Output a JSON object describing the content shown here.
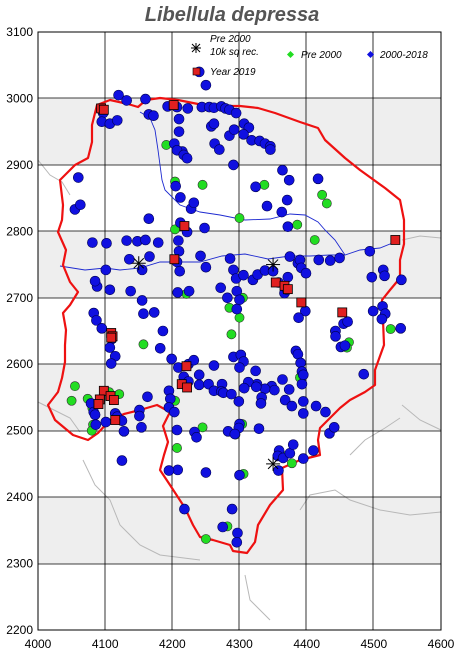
{
  "title": "Libellula depressa",
  "legend": {
    "pre2000_10k": [
      "Pre 2000",
      "10k sq rec."
    ],
    "pre2000": "Pre 2000",
    "recent": "2000-2018",
    "year2019": "Year 2019"
  },
  "chart_data": {
    "type": "scatter",
    "xlim": [
      4000,
      4600
    ],
    "ylim": [
      2200,
      3100
    ],
    "x_ticks": [
      4000,
      4100,
      4200,
      4300,
      4400,
      4500,
      4600
    ],
    "y_ticks": [
      2200,
      2300,
      2400,
      2500,
      2600,
      2700,
      2800,
      2900,
      3000,
      3100
    ],
    "x_tick_labels": [
      "4000",
      "4100",
      "4200",
      "4300",
      "4400",
      "4500",
      "4600"
    ],
    "y_tick_labels": [
      "2200",
      "2300",
      "2400",
      "2500",
      "2600",
      "2700",
      "2800",
      "2900",
      "3000",
      "3100"
    ],
    "grid": true,
    "colors": {
      "recent": "#1010e0",
      "pre2000": "#22dd22",
      "year2019": "#e02020",
      "boundary": "#ee1111",
      "river": "#1e2ad0",
      "band": "#eeeeee"
    },
    "series": [
      {
        "name": "2000-2018",
        "points": [
          [
            4120,
            3005
          ],
          [
            4132,
            2997
          ],
          [
            4160,
            2999
          ],
          [
            4165,
            2976
          ],
          [
            4172,
            2974
          ],
          [
            4193,
            2988
          ],
          [
            4207,
            2987
          ],
          [
            4210,
            2969
          ],
          [
            4223,
            2985
          ],
          [
            4244,
            2987
          ],
          [
            4255,
            2987
          ],
          [
            4262,
            2986
          ],
          [
            4273,
            2988
          ],
          [
            4279,
            2985
          ],
          [
            4285,
            2983
          ],
          [
            4295,
            2978
          ],
          [
            4097,
            2978
          ],
          [
            4095,
            2965
          ],
          [
            4107,
            2962
          ],
          [
            4118,
            2967
          ],
          [
            4210,
            2950
          ],
          [
            4203,
            2932
          ],
          [
            4215,
            2920
          ],
          [
            4258,
            2958
          ],
          [
            4262,
            2962
          ],
          [
            4285,
            2944
          ],
          [
            4292,
            2953
          ],
          [
            4307,
            2962
          ],
          [
            4314,
            2956
          ],
          [
            4306,
            2946
          ],
          [
            4318,
            2937
          ],
          [
            4330,
            2936
          ],
          [
            4338,
            2932
          ],
          [
            4346,
            2928
          ],
          [
            4346,
            2923
          ],
          [
            4263,
            2932
          ],
          [
            4270,
            2923
          ],
          [
            4207,
            2922
          ],
          [
            4217,
            2915
          ],
          [
            4222,
            2910
          ],
          [
            4291,
            2900
          ],
          [
            4364,
            2892
          ],
          [
            4324,
            2867
          ],
          [
            4374,
            2877
          ],
          [
            4417,
            2879
          ],
          [
            4060,
            2881
          ],
          [
            4055,
            2833
          ],
          [
            4063,
            2840
          ],
          [
            4205,
            2868
          ],
          [
            4212,
            2851
          ],
          [
            4228,
            2834
          ],
          [
            4232,
            2843
          ],
          [
            4341,
            2838
          ],
          [
            4371,
            2847
          ],
          [
            4363,
            2829
          ],
          [
            4165,
            2819
          ],
          [
            4212,
            2813
          ],
          [
            4222,
            2799
          ],
          [
            4248,
            2805
          ],
          [
            4372,
            2807
          ],
          [
            4081,
            2783
          ],
          [
            4102,
            2782
          ],
          [
            4132,
            2786
          ],
          [
            4148,
            2785
          ],
          [
            4160,
            2787
          ],
          [
            4179,
            2783
          ],
          [
            4209,
            2786
          ],
          [
            4210,
            2770
          ],
          [
            4136,
            2758
          ],
          [
            4155,
            2742
          ],
          [
            4166,
            2762
          ],
          [
            4207,
            2754
          ],
          [
            4211,
            2740
          ],
          [
            4242,
            2763
          ],
          [
            4250,
            2746
          ],
          [
            4286,
            2759
          ],
          [
            4291,
            2742
          ],
          [
            4295,
            2729
          ],
          [
            4306,
            2734
          ],
          [
            4320,
            2727
          ],
          [
            4327,
            2735
          ],
          [
            4338,
            2741
          ],
          [
            4375,
            2762
          ],
          [
            4387,
            2752
          ],
          [
            4390,
            2757
          ],
          [
            4392,
            2745
          ],
          [
            4350,
            2740
          ],
          [
            4358,
            2723
          ],
          [
            4372,
            2731
          ],
          [
            4399,
            2737
          ],
          [
            4418,
            2757
          ],
          [
            4435,
            2756
          ],
          [
            4449,
            2760
          ],
          [
            4494,
            2770
          ],
          [
            4514,
            2742
          ],
          [
            4516,
            2733
          ],
          [
            4541,
            2727
          ],
          [
            4497,
            2731
          ],
          [
            4101,
            2742
          ],
          [
            4088,
            2717
          ],
          [
            4085,
            2725
          ],
          [
            4107,
            2712
          ],
          [
            4138,
            2710
          ],
          [
            4155,
            2696
          ],
          [
            4157,
            2676
          ],
          [
            4173,
            2678
          ],
          [
            4208,
            2708
          ],
          [
            4225,
            2710
          ],
          [
            4272,
            2715
          ],
          [
            4282,
            2700
          ],
          [
            4296,
            2710
          ],
          [
            4300,
            2697
          ],
          [
            4296,
            2683
          ],
          [
            4367,
            2707
          ],
          [
            4371,
            2712
          ],
          [
            4398,
            2680
          ],
          [
            4388,
            2670
          ],
          [
            4455,
            2661
          ],
          [
            4461,
            2664
          ],
          [
            4443,
            2650
          ],
          [
            4443,
            2642
          ],
          [
            4451,
            2626
          ],
          [
            4457,
            2628
          ],
          [
            4499,
            2680
          ],
          [
            4513,
            2687
          ],
          [
            4517,
            2676
          ],
          [
            4512,
            2668
          ],
          [
            4540,
            2654
          ],
          [
            4083,
            2677
          ],
          [
            4087,
            2666
          ],
          [
            4095,
            2654
          ],
          [
            4110,
            2638
          ],
          [
            4107,
            2625
          ],
          [
            4115,
            2612
          ],
          [
            4109,
            2601
          ],
          [
            4186,
            2650
          ],
          [
            4182,
            2624
          ],
          [
            4199,
            2608
          ],
          [
            4209,
            2595
          ],
          [
            4224,
            2600
          ],
          [
            4232,
            2606
          ],
          [
            4217,
            2581
          ],
          [
            4224,
            2574
          ],
          [
            4262,
            2598
          ],
          [
            4291,
            2611
          ],
          [
            4302,
            2614
          ],
          [
            4306,
            2604
          ],
          [
            4300,
            2595
          ],
          [
            4324,
            2590
          ],
          [
            4326,
            2570
          ],
          [
            4348,
            2567
          ],
          [
            4352,
            2561
          ],
          [
            4338,
            2563
          ],
          [
            4364,
            2577
          ],
          [
            4384,
            2620
          ],
          [
            4387,
            2615
          ],
          [
            4391,
            2602
          ],
          [
            4393,
            2589
          ],
          [
            4395,
            2584
          ],
          [
            4393,
            2570
          ],
          [
            4374,
            2562
          ],
          [
            4368,
            2546
          ],
          [
            4395,
            2544
          ],
          [
            4378,
            2537
          ],
          [
            4395,
            2526
          ],
          [
            4414,
            2537
          ],
          [
            4428,
            2528
          ],
          [
            4434,
            2496
          ],
          [
            4441,
            2505
          ],
          [
            4485,
            2585
          ],
          [
            4240,
            2584
          ],
          [
            4240,
            2569
          ],
          [
            4254,
            2570
          ],
          [
            4262,
            2560
          ],
          [
            4274,
            2570
          ],
          [
            4273,
            2559
          ],
          [
            4276,
            2557
          ],
          [
            4288,
            2555
          ],
          [
            4299,
            2544
          ],
          [
            4313,
            2573
          ],
          [
            4307,
            2564
          ],
          [
            4325,
            2566
          ],
          [
            4333,
            2550
          ],
          [
            4332,
            2541
          ],
          [
            4300,
            2510
          ],
          [
            4299,
            2504
          ],
          [
            4283,
            2499
          ],
          [
            4293,
            2495
          ],
          [
            4329,
            2503
          ],
          [
            4079,
            2541
          ],
          [
            4083,
            2528
          ],
          [
            4085,
            2524
          ],
          [
            4086,
            2509
          ],
          [
            4101,
            2513
          ],
          [
            4115,
            2526
          ],
          [
            4118,
            2521
          ],
          [
            4125,
            2515
          ],
          [
            4128,
            2499
          ],
          [
            4151,
            2531
          ],
          [
            4151,
            2522
          ],
          [
            4154,
            2505
          ],
          [
            4163,
            2551
          ],
          [
            4195,
            2560
          ],
          [
            4197,
            2548
          ],
          [
            4195,
            2535
          ],
          [
            4203,
            2528
          ],
          [
            4207,
            2501
          ],
          [
            4233,
            2498
          ],
          [
            4236,
            2490
          ],
          [
            4359,
            2470
          ],
          [
            4357,
            2462
          ],
          [
            4365,
            2459
          ],
          [
            4358,
            2440
          ],
          [
            4375,
            2466
          ],
          [
            4380,
            2479
          ],
          [
            4395,
            2458
          ],
          [
            4410,
            2470
          ],
          [
            4125,
            2455
          ],
          [
            4208,
            2441
          ],
          [
            4195,
            2440
          ],
          [
            4218,
            2382
          ],
          [
            4250,
            2437
          ],
          [
            4275,
            2355
          ],
          [
            4289,
            2382
          ],
          [
            4297,
            2346
          ],
          [
            4296,
            2332
          ],
          [
            4300,
            2433
          ],
          [
            4250,
            3020
          ],
          [
            4240,
            3040
          ]
        ]
      },
      {
        "name": "Pre 2000",
        "points": [
          [
            4191,
            2930
          ],
          [
            4204,
            2875
          ],
          [
            4245,
            2870
          ],
          [
            4337,
            2870
          ],
          [
            4423,
            2855
          ],
          [
            4430,
            2842
          ],
          [
            4300,
            2820
          ],
          [
            4204,
            2803
          ],
          [
            4386,
            2810
          ],
          [
            4412,
            2787
          ],
          [
            4305,
            2700
          ],
          [
            4285,
            2685
          ],
          [
            4221,
            2706
          ],
          [
            4157,
            2630
          ],
          [
            4288,
            2645
          ],
          [
            4300,
            2670
          ],
          [
            4442,
            2650
          ],
          [
            4463,
            2633
          ],
          [
            4460,
            2625
          ],
          [
            4525,
            2653
          ],
          [
            4055,
            2567
          ],
          [
            4050,
            2545
          ],
          [
            4074,
            2548
          ],
          [
            4081,
            2534
          ],
          [
            4082,
            2509
          ],
          [
            4080,
            2500
          ],
          [
            4106,
            2558
          ],
          [
            4121,
            2555
          ],
          [
            4195,
            2560
          ],
          [
            4204,
            2545
          ],
          [
            4245,
            2505
          ],
          [
            4304,
            2510
          ],
          [
            4294,
            2494
          ],
          [
            4390,
            2580
          ],
          [
            4378,
            2451
          ],
          [
            4363,
            2463
          ],
          [
            4207,
            2474
          ],
          [
            4306,
            2435
          ],
          [
            4250,
            2337
          ],
          [
            4282,
            2356
          ]
        ]
      },
      {
        "name": "Year 2019",
        "points": [
          [
            4094,
            2985
          ],
          [
            4098,
            2983
          ],
          [
            4202,
            2990
          ],
          [
            4218,
            2808
          ],
          [
            4203,
            2758
          ],
          [
            4354,
            2723
          ],
          [
            4367,
            2718
          ],
          [
            4372,
            2713
          ],
          [
            4392,
            2693
          ],
          [
            4453,
            2678
          ],
          [
            4532,
            2787
          ],
          [
            4109,
            2647
          ],
          [
            4111,
            2642
          ],
          [
            4109,
            2640
          ],
          [
            4221,
            2597
          ],
          [
            4214,
            2570
          ],
          [
            4222,
            2565
          ],
          [
            4098,
            2560
          ],
          [
            4108,
            2552
          ],
          [
            4092,
            2547
          ],
          [
            4113,
            2546
          ],
          [
            4090,
            2540
          ],
          [
            4115,
            2516
          ]
        ]
      },
      {
        "name": "Pre 2000 10k sq rec.",
        "points": [
          [
            4150,
            2752
          ],
          [
            4350,
            2750
          ],
          [
            4350,
            2450
          ]
        ]
      }
    ]
  }
}
